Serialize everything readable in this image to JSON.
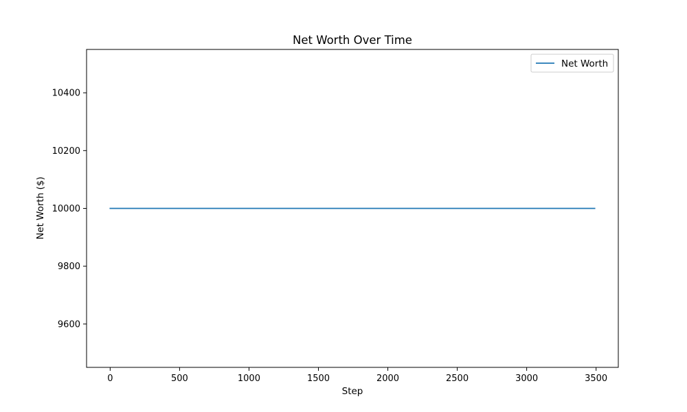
{
  "chart_data": {
    "type": "line",
    "title": "Net Worth Over Time",
    "xlabel": "Step",
    "ylabel": "Net Worth ($)",
    "xlim": [
      -170,
      3660
    ],
    "ylim": [
      9450,
      10550
    ],
    "xticks": [
      0,
      500,
      1000,
      1500,
      2000,
      2500,
      3000,
      3500
    ],
    "yticks": [
      9600,
      9800,
      10000,
      10200,
      10400
    ],
    "grid": false,
    "legend_position": "top-right",
    "series": [
      {
        "name": "Net Worth",
        "color": "#1f77b4",
        "x": [
          0,
          3490
        ],
        "y": [
          10000,
          10000
        ]
      }
    ]
  }
}
